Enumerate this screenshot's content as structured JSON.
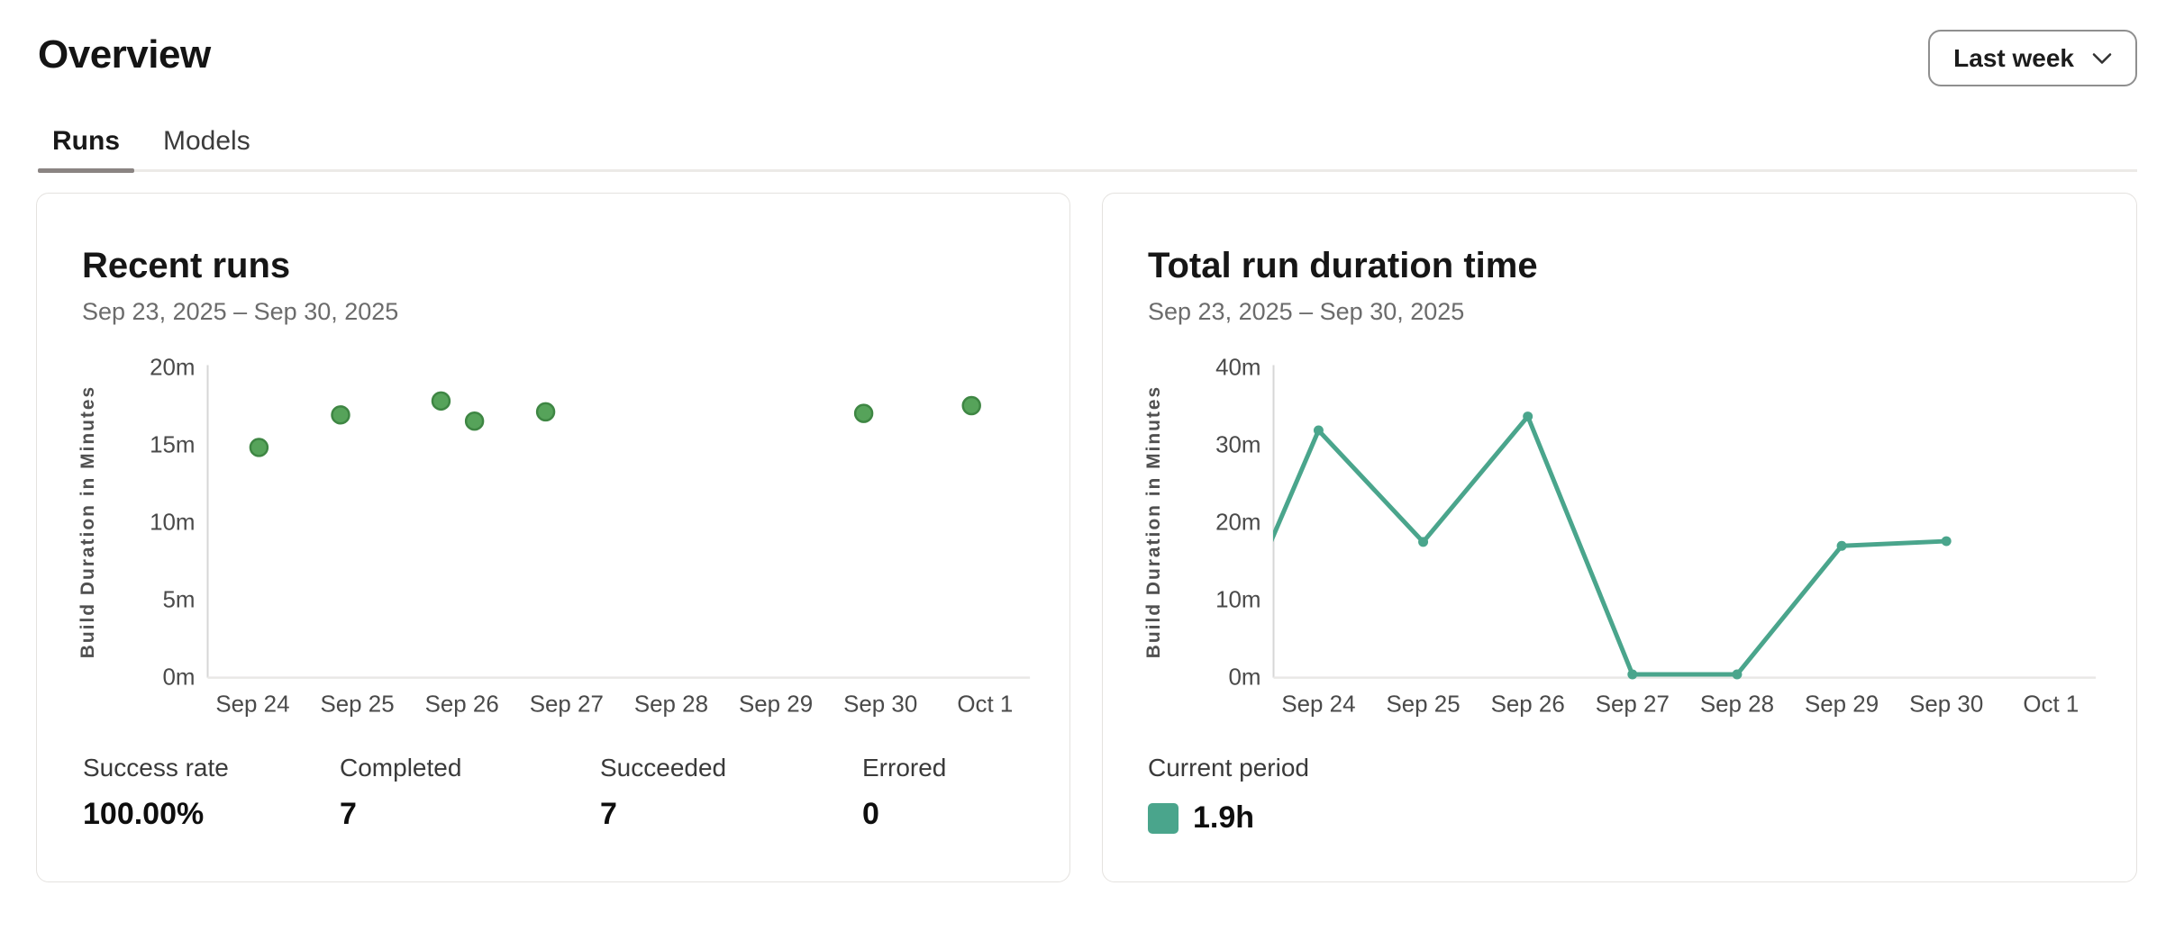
{
  "header": {
    "title": "Overview",
    "period_selector": {
      "label": "Last week"
    }
  },
  "tabs": [
    {
      "label": "Runs",
      "active": true
    },
    {
      "label": "Models",
      "active": false
    }
  ],
  "cards": {
    "recent_runs": {
      "title": "Recent runs",
      "date_range": "Sep 23, 2025 – Sep 30, 2025",
      "stats": [
        {
          "label": "Success rate",
          "value": "100.00%"
        },
        {
          "label": "Completed",
          "value": "7"
        },
        {
          "label": "Succeeded",
          "value": "7"
        },
        {
          "label": "Errored",
          "value": "0"
        }
      ]
    },
    "total_run_duration": {
      "title": "Total run duration time",
      "date_range": "Sep 23, 2025 – Sep 30, 2025",
      "legend": {
        "label": "Current period",
        "value": "1.9h",
        "color": "#4aa58c"
      }
    }
  },
  "chart_data": [
    {
      "type": "scatter",
      "title": "Recent runs",
      "xlabel": "",
      "ylabel": "Build Duration in Minutes",
      "x_unit": "days since Sep 23, 2025 (Sep 24 = 1)",
      "xlim": [
        0.57,
        8.3
      ],
      "ylim": [
        0,
        20
      ],
      "grid": false,
      "x_ticks": [
        {
          "v": 1,
          "label": "Sep 24"
        },
        {
          "v": 2,
          "label": "Sep 25"
        },
        {
          "v": 3,
          "label": "Sep 26"
        },
        {
          "v": 4,
          "label": "Sep 27"
        },
        {
          "v": 5,
          "label": "Sep 28"
        },
        {
          "v": 6,
          "label": "Sep 29"
        },
        {
          "v": 7,
          "label": "Sep 30"
        },
        {
          "v": 8,
          "label": "Oct 1"
        }
      ],
      "y_ticks": [
        {
          "v": 0,
          "label": "0m"
        },
        {
          "v": 5,
          "label": "5m"
        },
        {
          "v": 10,
          "label": "10m"
        },
        {
          "v": 15,
          "label": "15m"
        },
        {
          "v": 20,
          "label": "20m"
        }
      ],
      "points": [
        {
          "x": 1.06,
          "y": 14.8
        },
        {
          "x": 1.84,
          "y": 16.9
        },
        {
          "x": 2.8,
          "y": 17.8
        },
        {
          "x": 3.12,
          "y": 16.5
        },
        {
          "x": 3.8,
          "y": 17.1
        },
        {
          "x": 6.84,
          "y": 17.0
        },
        {
          "x": 7.87,
          "y": 17.5
        }
      ],
      "point_color": "#56a35a",
      "point_stroke": "#3e8643"
    },
    {
      "type": "line",
      "title": "Total run duration time",
      "xlabel": "",
      "ylabel": "Build Duration in Minutes",
      "x_unit": "days since Sep 23, 2025 (Sep 24 = 1)",
      "xlim": [
        0.57,
        8.3
      ],
      "ylim": [
        0,
        40
      ],
      "grid": false,
      "legend_position": "bottom-left",
      "x_ticks": [
        {
          "v": 1,
          "label": "Sep 24"
        },
        {
          "v": 2,
          "label": "Sep 25"
        },
        {
          "v": 3,
          "label": "Sep 26"
        },
        {
          "v": 4,
          "label": "Sep 27"
        },
        {
          "v": 5,
          "label": "Sep 28"
        },
        {
          "v": 6,
          "label": "Sep 29"
        },
        {
          "v": 7,
          "label": "Sep 30"
        },
        {
          "v": 8,
          "label": "Oct 1"
        }
      ],
      "y_ticks": [
        {
          "v": 0,
          "label": "0m"
        },
        {
          "v": 10,
          "label": "10m"
        },
        {
          "v": 20,
          "label": "20m"
        },
        {
          "v": 30,
          "label": "30m"
        },
        {
          "v": 40,
          "label": "40m"
        }
      ],
      "series": [
        {
          "name": "Current period",
          "points": [
            {
              "x": 0,
              "y": 0.3
            },
            {
              "x": 1,
              "y": 31.8
            },
            {
              "x": 2,
              "y": 17.4
            },
            {
              "x": 3,
              "y": 33.6
            },
            {
              "x": 4,
              "y": 0.3
            },
            {
              "x": 5,
              "y": 0.3
            },
            {
              "x": 6,
              "y": 16.9
            },
            {
              "x": 7,
              "y": 17.5
            }
          ]
        }
      ],
      "line_color": "#4aa58c"
    }
  ]
}
